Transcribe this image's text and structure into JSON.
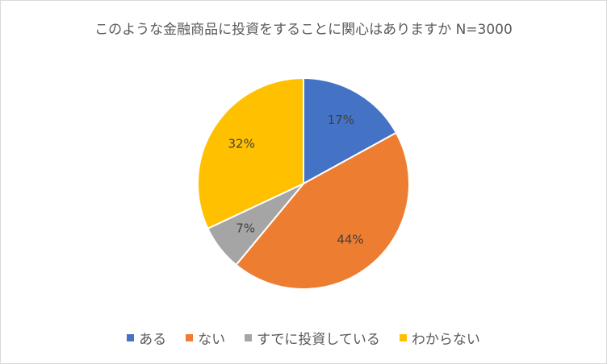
{
  "chart_data": {
    "type": "pie",
    "title": "このような金融商品に投資をすることに関心はありますか N=3000",
    "categories": [
      "ある",
      "ない",
      "すでに投資している",
      "わからない"
    ],
    "values": [
      17,
      44,
      7,
      32
    ],
    "labels": [
      "17%",
      "44%",
      "7%",
      "32%"
    ],
    "colors": [
      "#4472c4",
      "#ed7d31",
      "#a5a5a5",
      "#ffc000"
    ],
    "legend": "bottom"
  }
}
